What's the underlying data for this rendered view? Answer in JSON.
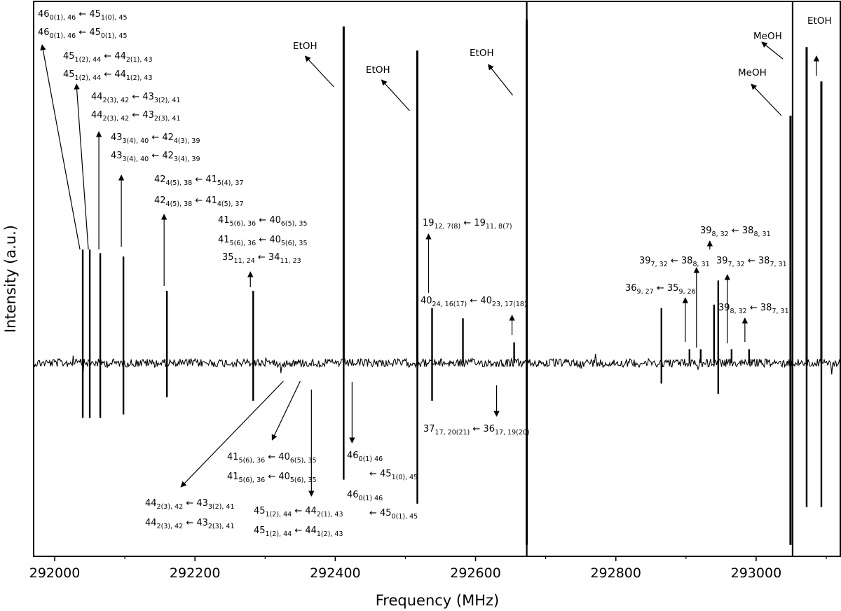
{
  "chart_data": {
    "type": "line",
    "xlabel": "Frequency (MHz)",
    "ylabel": "Intensity (a.u.)",
    "xlim": [
      291970,
      293120
    ],
    "xticks": [
      292000,
      292200,
      292400,
      292600,
      292800,
      293000
    ],
    "yticks": [],
    "grid": false,
    "legend": "none",
    "panel_dividers_mhz": [
      292673,
      293052
    ],
    "series": [
      {
        "direction": "up",
        "peaks": [
          {
            "x": 292040,
            "y": 0.33
          },
          {
            "x": 292050,
            "y": 0.33
          },
          {
            "x": 292065,
            "y": 0.32
          },
          {
            "x": 292098,
            "y": 0.31
          },
          {
            "x": 292160,
            "y": 0.21
          },
          {
            "x": 292283,
            "y": 0.21
          },
          {
            "x": 292412,
            "y": 0.98
          },
          {
            "x": 292517,
            "y": 0.91
          },
          {
            "x": 292538,
            "y": 0.16
          },
          {
            "x": 292582,
            "y": 0.13
          },
          {
            "x": 292655,
            "y": 0.06
          },
          {
            "x": 292673,
            "y": 1.0
          },
          {
            "x": 292865,
            "y": 0.16
          },
          {
            "x": 292905,
            "y": 0.04
          },
          {
            "x": 292921,
            "y": 0.04
          },
          {
            "x": 292940,
            "y": 0.17
          },
          {
            "x": 292946,
            "y": 0.24
          },
          {
            "x": 292965,
            "y": 0.04
          },
          {
            "x": 292990,
            "y": 0.04
          },
          {
            "x": 293049,
            "y": 0.72
          },
          {
            "x": 293072,
            "y": 0.92
          },
          {
            "x": 293093,
            "y": 0.82
          }
        ]
      },
      {
        "direction": "down",
        "peaks": [
          {
            "x": 292040,
            "y": -0.16
          },
          {
            "x": 292050,
            "y": -0.16
          },
          {
            "x": 292065,
            "y": -0.16
          },
          {
            "x": 292098,
            "y": -0.15
          },
          {
            "x": 292160,
            "y": -0.1
          },
          {
            "x": 292283,
            "y": -0.11
          },
          {
            "x": 292412,
            "y": -0.34
          },
          {
            "x": 292517,
            "y": -0.41
          },
          {
            "x": 292538,
            "y": -0.11
          },
          {
            "x": 292673,
            "y": -0.53
          },
          {
            "x": 292865,
            "y": -0.06
          },
          {
            "x": 292946,
            "y": -0.09
          },
          {
            "x": 293049,
            "y": -0.53
          },
          {
            "x": 293072,
            "y": -0.42
          },
          {
            "x": 293093,
            "y": -0.42
          }
        ]
      }
    ],
    "annotations": [
      {
        "parts": [
          [
            "46",
            "0(1), 46"
          ],
          [
            "← 45",
            "1(0), 45"
          ]
        ]
      },
      {
        "parts": [
          [
            "46",
            "0(1), 46"
          ],
          [
            "← 45",
            "0(1), 45"
          ]
        ]
      },
      {
        "parts": [
          [
            "45",
            "1(2), 44"
          ],
          [
            "← 44",
            "2(1), 43"
          ]
        ]
      },
      {
        "parts": [
          [
            "45",
            "1(2), 44"
          ],
          [
            "← 44",
            "1(2), 43"
          ]
        ]
      },
      {
        "parts": [
          [
            "44",
            "2(3), 42"
          ],
          [
            "← 43",
            "3(2), 41"
          ]
        ]
      },
      {
        "parts": [
          [
            "44",
            "2(3), 42"
          ],
          [
            "← 43",
            "2(3), 41"
          ]
        ]
      },
      {
        "parts": [
          [
            "43",
            "3(4), 40"
          ],
          [
            "← 42",
            "4(3), 39"
          ]
        ]
      },
      {
        "parts": [
          [
            "43",
            "3(4), 40"
          ],
          [
            "← 42",
            "3(4), 39"
          ]
        ]
      },
      {
        "parts": [
          [
            "42",
            "4(5), 38"
          ],
          [
            "← 41",
            "5(4), 37"
          ]
        ]
      },
      {
        "parts": [
          [
            "42",
            "4(5), 38"
          ],
          [
            "← 41",
            "4(5), 37"
          ]
        ]
      },
      {
        "parts": [
          [
            "41",
            "5(6), 36"
          ],
          [
            "← 40",
            "6(5), 35"
          ]
        ]
      },
      {
        "parts": [
          [
            "41",
            "5(6), 36"
          ],
          [
            "← 40",
            "5(6), 35"
          ]
        ]
      },
      {
        "parts": [
          [
            "35",
            "11, 24"
          ],
          [
            "← 34",
            "11, 23"
          ]
        ]
      },
      {
        "parts": [
          [
            "19",
            "12, 7(8)"
          ],
          [
            "← 19",
            "11, 8(7)"
          ]
        ]
      },
      {
        "parts": [
          [
            "40",
            "24, 16(17)"
          ],
          [
            "← 40",
            "23, 17(18)"
          ]
        ]
      },
      {
        "parts": [
          [
            "39",
            "8, 32"
          ],
          [
            "← 38",
            "8, 31"
          ]
        ]
      },
      {
        "parts": [
          [
            "39",
            "7, 32"
          ],
          [
            "← 38",
            "8, 31"
          ]
        ]
      },
      {
        "parts": [
          [
            "39",
            "7, 32"
          ],
          [
            "← 38",
            "7, 31"
          ]
        ]
      },
      {
        "parts": [
          [
            "36",
            "9, 27"
          ],
          [
            "← 35",
            "9, 26"
          ]
        ]
      },
      {
        "parts": [
          [
            "39",
            "8, 32"
          ],
          [
            "← 38",
            "7, 31"
          ]
        ]
      },
      {
        "parts": [
          [
            "37",
            "17, 20(21)"
          ],
          [
            "← 36",
            "17, 19(20)"
          ]
        ]
      },
      {
        "parts": [
          [
            "41",
            "5(6), 36"
          ],
          [
            "← 40",
            "6(5), 35"
          ]
        ]
      },
      {
        "parts": [
          [
            "41",
            "5(6), 36"
          ],
          [
            "← 40",
            "5(6), 35"
          ]
        ]
      },
      {
        "parts": [
          [
            "46",
            "0(1) 46"
          ]
        ]
      },
      {
        "parts": [
          [
            "← 45",
            "1(0), 45"
          ]
        ]
      },
      {
        "parts": [
          [
            "46",
            "0(1) 46"
          ]
        ]
      },
      {
        "parts": [
          [
            "← 45",
            "0(1), 45"
          ]
        ]
      },
      {
        "parts": [
          [
            "44",
            "2(3), 42"
          ],
          [
            "← 43",
            "3(2), 41"
          ]
        ]
      },
      {
        "parts": [
          [
            "44",
            "2(3), 42"
          ],
          [
            "← 43",
            "2(3), 41"
          ]
        ]
      },
      {
        "parts": [
          [
            "45",
            "1(2), 44"
          ],
          [
            "← 44",
            "2(1), 43"
          ]
        ]
      },
      {
        "parts": [
          [
            "45",
            "1(2), 44"
          ],
          [
            "← 44",
            "1(2), 43"
          ]
        ]
      },
      {
        "parts": [
          [
            "EtOH",
            ""
          ]
        ]
      },
      {
        "parts": [
          [
            "EtOH",
            ""
          ]
        ]
      },
      {
        "parts": [
          [
            "EtOH",
            ""
          ]
        ]
      },
      {
        "parts": [
          [
            "MeOH",
            ""
          ]
        ]
      },
      {
        "parts": [
          [
            "MeOH",
            ""
          ]
        ]
      },
      {
        "parts": [
          [
            "EtOH",
            ""
          ]
        ]
      }
    ]
  }
}
